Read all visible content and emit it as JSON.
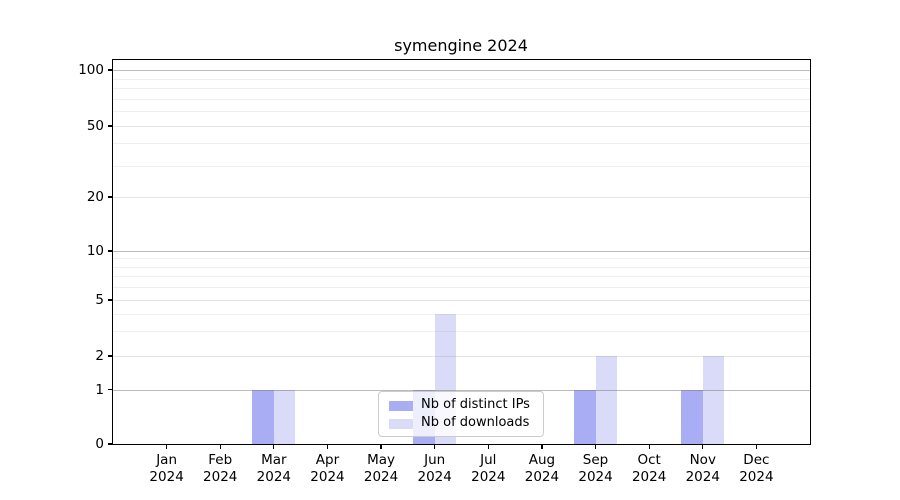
{
  "chart_data": {
    "type": "bar",
    "title": "symengine 2024",
    "categories": [
      "Jan",
      "Feb",
      "Mar",
      "Apr",
      "May",
      "Jun",
      "Jul",
      "Aug",
      "Sep",
      "Oct",
      "Nov",
      "Dec"
    ],
    "year_label": "2024",
    "series": [
      {
        "name": "Nb of distinct IPs",
        "color": "#a9adf4",
        "values": [
          0,
          0,
          1,
          0,
          0,
          1,
          0,
          0,
          1,
          0,
          1,
          0
        ]
      },
      {
        "name": "Nb of downloads",
        "color": "#d9dbf8",
        "values": [
          0,
          0,
          1,
          0,
          0,
          4,
          0,
          0,
          2,
          0,
          2,
          0
        ]
      }
    ],
    "y_ticks": [
      0,
      1,
      2,
      5,
      10,
      20,
      50,
      100
    ],
    "y_minor_ticks": [
      3,
      4,
      6,
      7,
      8,
      9,
      30,
      40,
      60,
      70,
      80,
      90
    ],
    "y_emphasized_gridlines": [
      1,
      10,
      100
    ],
    "y_scale": "symlog",
    "ylim": [
      0,
      130
    ],
    "grid": true,
    "legend_position": "lower center",
    "xlabel": "",
    "ylabel": ""
  }
}
